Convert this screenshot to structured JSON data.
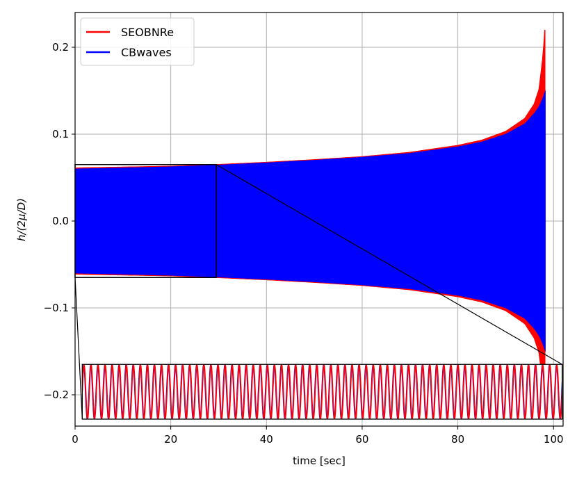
{
  "chart_data": {
    "type": "line",
    "xlabel": "time [sec]",
    "ylabel": "h/(2μ/D)",
    "xlim": [
      0,
      102
    ],
    "ylim": [
      -0.236,
      0.24
    ],
    "xticks": [
      0,
      20,
      40,
      60,
      80,
      100
    ],
    "xtick_labels": [
      "0",
      "20",
      "40",
      "60",
      "80",
      "100"
    ],
    "yticks": [
      -0.2,
      -0.1,
      0.0,
      0.1,
      0.2
    ],
    "ytick_labels": [
      "−0.2",
      "−0.1",
      "0.0",
      "0.1",
      "0.2"
    ],
    "grid": true,
    "legend_position": "top-left",
    "series": [
      {
        "name": "SEOBNRe",
        "color": "#ff0000",
        "envelope": {
          "t": [
            0,
            10,
            20,
            30,
            40,
            50,
            60,
            70,
            80,
            85,
            90,
            94,
            96,
            97,
            97.8,
            98.2
          ],
          "amp": [
            0.061,
            0.062,
            0.063,
            0.065,
            0.0675,
            0.0705,
            0.074,
            0.079,
            0.087,
            0.093,
            0.103,
            0.118,
            0.135,
            0.152,
            0.19,
            0.22
          ]
        }
      },
      {
        "name": "CBwaves",
        "color": "#0000ff",
        "envelope": {
          "t": [
            0,
            10,
            20,
            30,
            40,
            50,
            60,
            70,
            80,
            85,
            90,
            94,
            96,
            97,
            97.8,
            98.3
          ],
          "amp": [
            0.06,
            0.0612,
            0.0625,
            0.0645,
            0.067,
            0.07,
            0.0735,
            0.078,
            0.0855,
            0.091,
            0.1,
            0.112,
            0.124,
            0.132,
            0.142,
            0.15
          ]
        }
      }
    ],
    "zoom_region": {
      "x": [
        0,
        29.5
      ],
      "y": [
        -0.065,
        0.065
      ]
    },
    "inset": {
      "x": [
        1.5,
        101.8
      ],
      "y": [
        -0.228,
        -0.165
      ]
    }
  }
}
